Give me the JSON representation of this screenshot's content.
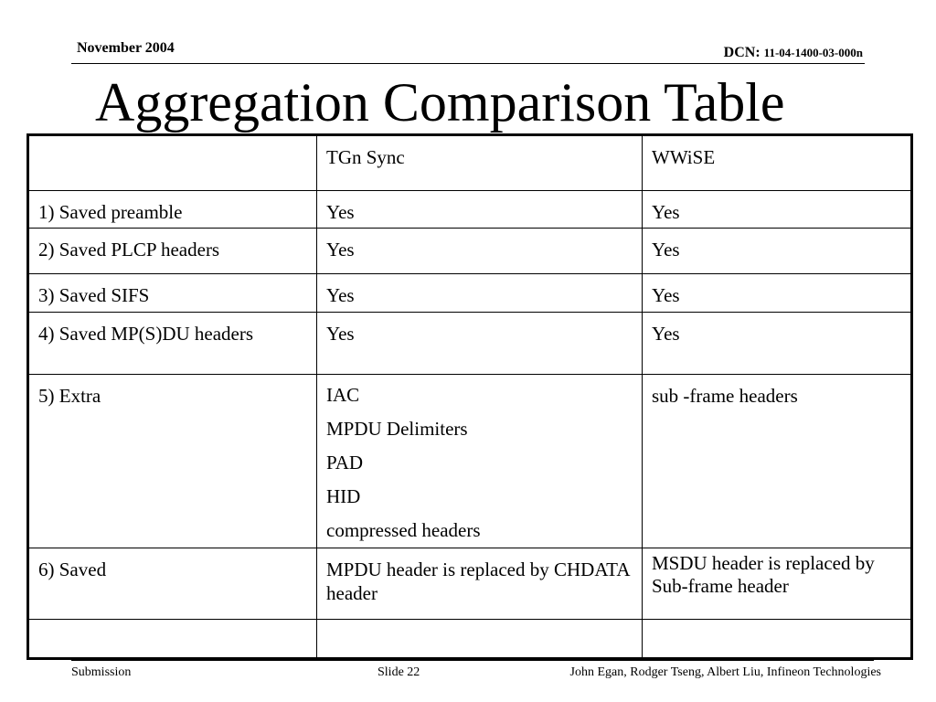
{
  "header": {
    "date": "November 2004",
    "dcn_label": "DCN:",
    "dcn_number": "11-04-1400-03-000n"
  },
  "title": "Aggregation Comparison Table",
  "table": {
    "columns": [
      "",
      "TGn Sync",
      "WWiSE"
    ],
    "rows": [
      {
        "feature": "1) Saved preamble",
        "tgn": "Yes",
        "wwise": "Yes"
      },
      {
        "feature": "2) Saved PLCP headers",
        "tgn": "Yes",
        "wwise": "Yes"
      },
      {
        "feature": "3) Saved SIFS",
        "tgn": "Yes",
        "wwise": "Yes"
      },
      {
        "feature": "4) Saved MP(S)DU headers",
        "tgn": "Yes",
        "wwise": "Yes"
      },
      {
        "feature": "5) Extra",
        "tgn": [
          "IAC",
          "MPDU Delimiters",
          "PAD",
          "HID",
          "compressed headers"
        ],
        "wwise": "sub -frame headers"
      },
      {
        "feature": "6) Saved",
        "tgn": "MPDU header is replaced by CHDATA header",
        "wwise": "MSDU header is replaced by Sub-frame header"
      },
      {
        "feature": "",
        "tgn": "",
        "wwise": ""
      }
    ]
  },
  "footer": {
    "left": "Submission",
    "center": "Slide 22",
    "right": "John Egan, Rodger Tseng, Albert Liu, Infineon Technologies"
  }
}
